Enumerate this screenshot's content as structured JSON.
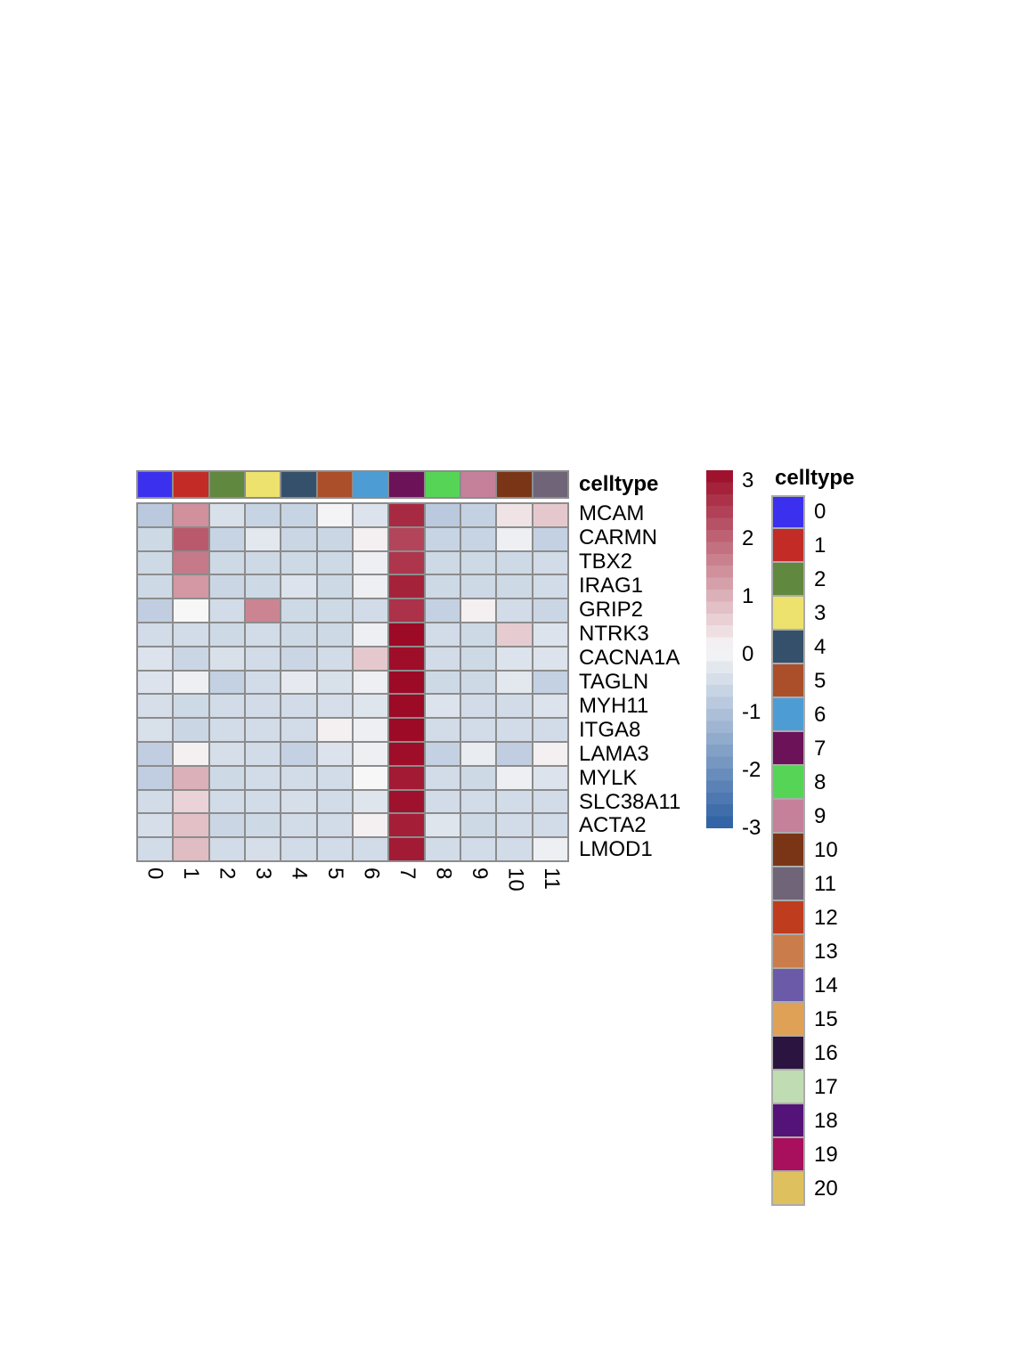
{
  "figure": {
    "background": "#ffffff",
    "gridline_color": "#8C8C8C"
  },
  "annotation": {
    "title": "celltype",
    "celltype_indices": [
      0,
      1,
      2,
      3,
      4,
      5,
      6,
      7,
      8,
      9,
      10,
      11
    ]
  },
  "palette": [
    "#3B30EE",
    "#C22B26",
    "#60883F",
    "#EDE26D",
    "#35506B",
    "#AA4F2A",
    "#4D9DD4",
    "#6B1258",
    "#55D455",
    "#C5809A",
    "#7A3517",
    "#6F6478",
    "#C03C1E",
    "#CA7D4A",
    "#6A5AA8",
    "#DFA156",
    "#2B1440",
    "#C0DCB2",
    "#541378",
    "#A80F5C",
    "#DFC05E"
  ],
  "chart_data": {
    "type": "heatmap",
    "rows": [
      "MCAM",
      "CARMN",
      "TBX2",
      "IRAG1",
      "GRIP2",
      "NTRK3",
      "CACNA1A",
      "TAGLN",
      "MYH11",
      "ITGA8",
      "LAMA3",
      "MYLK",
      "SLC38A11",
      "ACTA2",
      "LMOD1"
    ],
    "columns": [
      "0",
      "1",
      "2",
      "3",
      "4",
      "5",
      "6",
      "7",
      "8",
      "9",
      "10",
      "11"
    ],
    "values": [
      [
        -0.9,
        1.3,
        -0.45,
        -0.7,
        -0.7,
        -0.05,
        -0.4,
        2.6,
        -0.9,
        -0.75,
        0.25,
        0.6
      ],
      [
        -0.6,
        2.0,
        -0.7,
        -0.3,
        -0.65,
        -0.65,
        0.1,
        2.25,
        -0.7,
        -0.7,
        -0.15,
        -0.75
      ],
      [
        -0.6,
        1.6,
        -0.6,
        -0.6,
        -0.6,
        -0.6,
        -0.15,
        2.45,
        -0.6,
        -0.6,
        -0.6,
        -0.55
      ],
      [
        -0.6,
        1.2,
        -0.65,
        -0.6,
        -0.4,
        -0.6,
        -0.15,
        2.7,
        -0.6,
        -0.6,
        -0.6,
        -0.55
      ],
      [
        -0.8,
        0.0,
        -0.55,
        1.45,
        -0.6,
        -0.6,
        -0.55,
        2.5,
        -0.75,
        0.1,
        -0.55,
        -0.65
      ],
      [
        -0.55,
        -0.55,
        -0.6,
        -0.55,
        -0.6,
        -0.6,
        -0.15,
        3.0,
        -0.55,
        -0.6,
        0.55,
        -0.4
      ],
      [
        -0.4,
        -0.65,
        -0.45,
        -0.55,
        -0.65,
        -0.55,
        0.6,
        2.95,
        -0.55,
        -0.6,
        -0.4,
        -0.4
      ],
      [
        -0.4,
        -0.15,
        -0.75,
        -0.55,
        -0.25,
        -0.45,
        -0.15,
        3.0,
        -0.6,
        -0.6,
        -0.3,
        -0.75
      ],
      [
        -0.5,
        -0.6,
        -0.55,
        -0.55,
        -0.55,
        -0.5,
        -0.35,
        3.0,
        -0.4,
        -0.55,
        -0.55,
        -0.4
      ],
      [
        -0.45,
        -0.65,
        -0.55,
        -0.55,
        -0.55,
        0.1,
        -0.15,
        3.0,
        -0.55,
        -0.55,
        -0.55,
        -0.55
      ],
      [
        -0.8,
        0.1,
        -0.5,
        -0.55,
        -0.75,
        -0.4,
        -0.15,
        2.95,
        -0.75,
        -0.2,
        -0.8,
        0.1
      ],
      [
        -0.8,
        0.9,
        -0.6,
        -0.55,
        -0.55,
        -0.55,
        0.0,
        2.8,
        -0.55,
        -0.6,
        -0.15,
        -0.4
      ],
      [
        -0.55,
        0.45,
        -0.55,
        -0.55,
        -0.5,
        -0.55,
        -0.35,
        2.9,
        -0.55,
        -0.55,
        -0.55,
        -0.55
      ],
      [
        -0.5,
        0.7,
        -0.65,
        -0.6,
        -0.55,
        -0.55,
        0.1,
        2.75,
        -0.35,
        -0.6,
        -0.55,
        -0.55
      ],
      [
        -0.55,
        0.75,
        -0.55,
        -0.5,
        -0.55,
        -0.55,
        -0.55,
        2.8,
        -0.55,
        -0.55,
        -0.55,
        -0.15
      ]
    ],
    "color_scale": {
      "min": -3,
      "max": 3,
      "low": "#2B5FA3",
      "mid": "#F7F7F7",
      "high": "#9C0A26",
      "tick_labels": [
        "3",
        "2",
        "1",
        "0",
        "-1",
        "-2",
        "-3"
      ]
    },
    "column_annotation_label": "celltype",
    "legend_position": "right",
    "grid": true
  },
  "legend": {
    "title": "celltype",
    "entries": [
      {
        "label": "0",
        "color": "#3B30EE"
      },
      {
        "label": "1",
        "color": "#C22B26"
      },
      {
        "label": "2",
        "color": "#60883F"
      },
      {
        "label": "3",
        "color": "#EDE26D"
      },
      {
        "label": "4",
        "color": "#35506B"
      },
      {
        "label": "5",
        "color": "#AA4F2A"
      },
      {
        "label": "6",
        "color": "#4D9DD4"
      },
      {
        "label": "7",
        "color": "#6B1258"
      },
      {
        "label": "8",
        "color": "#55D455"
      },
      {
        "label": "9",
        "color": "#C5809A"
      },
      {
        "label": "10",
        "color": "#7A3517"
      },
      {
        "label": "11",
        "color": "#6F6478"
      },
      {
        "label": "12",
        "color": "#C03C1E"
      },
      {
        "label": "13",
        "color": "#CA7D4A"
      },
      {
        "label": "14",
        "color": "#6A5AA8"
      },
      {
        "label": "15",
        "color": "#DFA156"
      },
      {
        "label": "16",
        "color": "#2B1440"
      },
      {
        "label": "17",
        "color": "#C0DCB2"
      },
      {
        "label": "18",
        "color": "#541378"
      },
      {
        "label": "19",
        "color": "#A80F5C"
      },
      {
        "label": "20",
        "color": "#DFC05E"
      }
    ]
  }
}
